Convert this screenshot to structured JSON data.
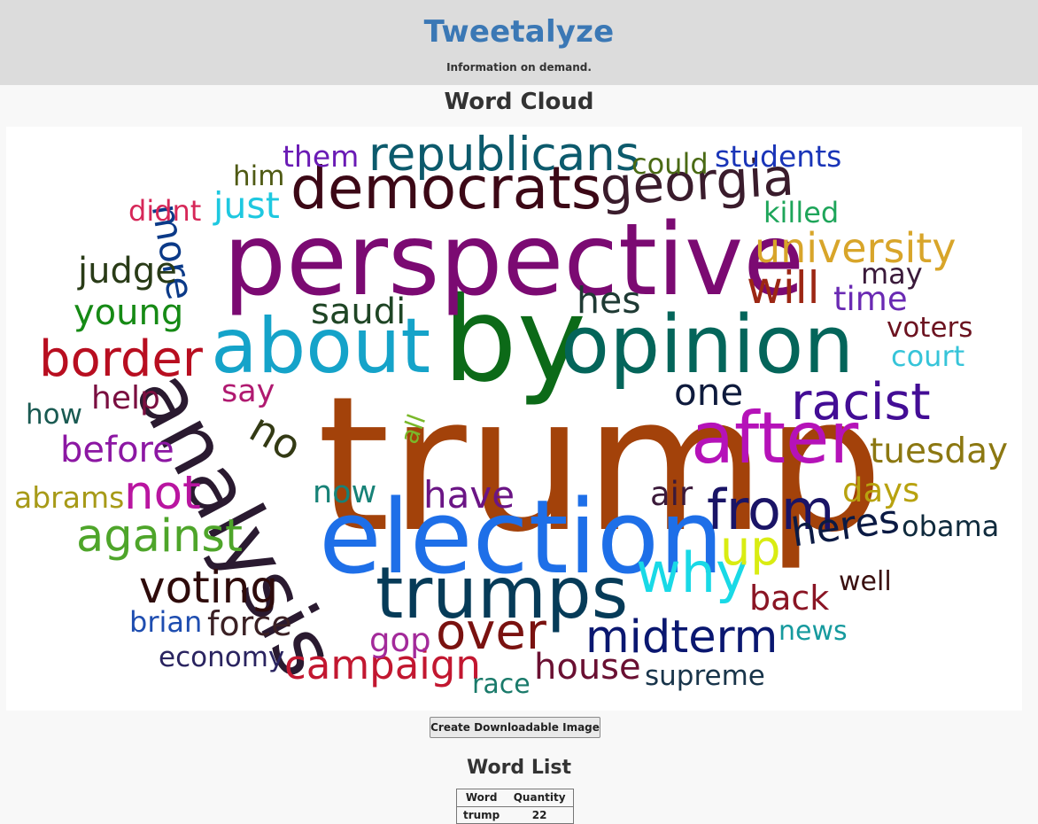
{
  "header": {
    "brand": "Tweetalyze",
    "tagline": "Information on demand."
  },
  "cloud": {
    "title": "Word Cloud",
    "words": [
      {
        "text": "trump",
        "color": "#a3420a"
      },
      {
        "text": "election",
        "color": "#1e6fe8"
      },
      {
        "text": "by",
        "color": "#0c6a18"
      },
      {
        "text": "perspective",
        "color": "#7b0a72"
      },
      {
        "text": "opinion",
        "color": "#04655a"
      },
      {
        "text": "about",
        "color": "#15a3c9"
      },
      {
        "text": "analysis",
        "color": "#2a1a30"
      },
      {
        "text": "trumps",
        "color": "#063b58"
      },
      {
        "text": "after",
        "color": "#b512b8"
      },
      {
        "text": "democrats",
        "color": "#3c0816"
      },
      {
        "text": "republicans",
        "color": "#0c5a6c"
      },
      {
        "text": "georgia",
        "color": "#3a1c2c"
      },
      {
        "text": "from",
        "color": "#1a1466"
      },
      {
        "text": "why",
        "color": "#19d9e6"
      },
      {
        "text": "racist",
        "color": "#430d95"
      },
      {
        "text": "midterm",
        "color": "#0a1770"
      },
      {
        "text": "over",
        "color": "#7a1210"
      },
      {
        "text": "border",
        "color": "#b80e20"
      },
      {
        "text": "university",
        "color": "#d8a52a"
      },
      {
        "text": "not",
        "color": "#b915a0"
      },
      {
        "text": "against",
        "color": "#4ea52a"
      },
      {
        "text": "voting",
        "color": "#2e0b0b"
      },
      {
        "text": "campaign",
        "color": "#c21730"
      },
      {
        "text": "up",
        "color": "#d9ec12"
      },
      {
        "text": "will",
        "color": "#9c2714"
      },
      {
        "text": "heres",
        "color": "#0b1a44"
      },
      {
        "text": "tuesday",
        "color": "#8c7812"
      },
      {
        "text": "young",
        "color": "#168a15"
      },
      {
        "text": "hes",
        "color": "#1f3a34"
      },
      {
        "text": "more",
        "color": "#0b3a88"
      },
      {
        "text": "judge",
        "color": "#293b17"
      },
      {
        "text": "before",
        "color": "#8c17a3"
      },
      {
        "text": "no",
        "color": "#333a14"
      },
      {
        "text": "one",
        "color": "#0e1a3c"
      },
      {
        "text": "saudi",
        "color": "#1f4525"
      },
      {
        "text": "house",
        "color": "#6a1032"
      },
      {
        "text": "have",
        "color": "#6b1585"
      },
      {
        "text": "days",
        "color": "#b8a20f"
      },
      {
        "text": "back",
        "color": "#8a1524"
      },
      {
        "text": "now",
        "color": "#178277"
      },
      {
        "text": "just",
        "color": "#1ec8e0"
      },
      {
        "text": "force",
        "color": "#3a2024"
      },
      {
        "text": "gop",
        "color": "#a32a9a"
      },
      {
        "text": "time",
        "color": "#6a2ab3"
      },
      {
        "text": "help",
        "color": "#7a0e40"
      },
      {
        "text": "supreme",
        "color": "#18344a"
      },
      {
        "text": "obama",
        "color": "#0f2a3c"
      },
      {
        "text": "court",
        "color": "#36c4d9"
      },
      {
        "text": "voters",
        "color": "#6c1320"
      },
      {
        "text": "abrams",
        "color": "#a79a18"
      },
      {
        "text": "students",
        "color": "#1a35b8"
      },
      {
        "text": "economy",
        "color": "#2a2460"
      },
      {
        "text": "brian",
        "color": "#1e4db0"
      },
      {
        "text": "news",
        "color": "#169a9e"
      },
      {
        "text": "could",
        "color": "#4a6a14"
      },
      {
        "text": "them",
        "color": "#6a1bb5"
      },
      {
        "text": "didnt",
        "color": "#d62758"
      },
      {
        "text": "killed",
        "color": "#1ea55a"
      },
      {
        "text": "well",
        "color": "#3a1010"
      },
      {
        "text": "race",
        "color": "#1a7a6a"
      },
      {
        "text": "air",
        "color": "#3b1a3a"
      },
      {
        "text": "say",
        "color": "#b01a70"
      },
      {
        "text": "may",
        "color": "#3a1a3a"
      },
      {
        "text": "him",
        "color": "#4f5a14"
      },
      {
        "text": "how",
        "color": "#1a5a52"
      },
      {
        "text": "all",
        "color": "#7ab82a"
      }
    ]
  },
  "download_button": {
    "label": "Create Downloadable Image"
  },
  "word_list": {
    "title": "Word List",
    "columns": [
      "Word",
      "Quantity"
    ],
    "rows": [
      {
        "word": "trump",
        "quantity": "22"
      }
    ]
  }
}
